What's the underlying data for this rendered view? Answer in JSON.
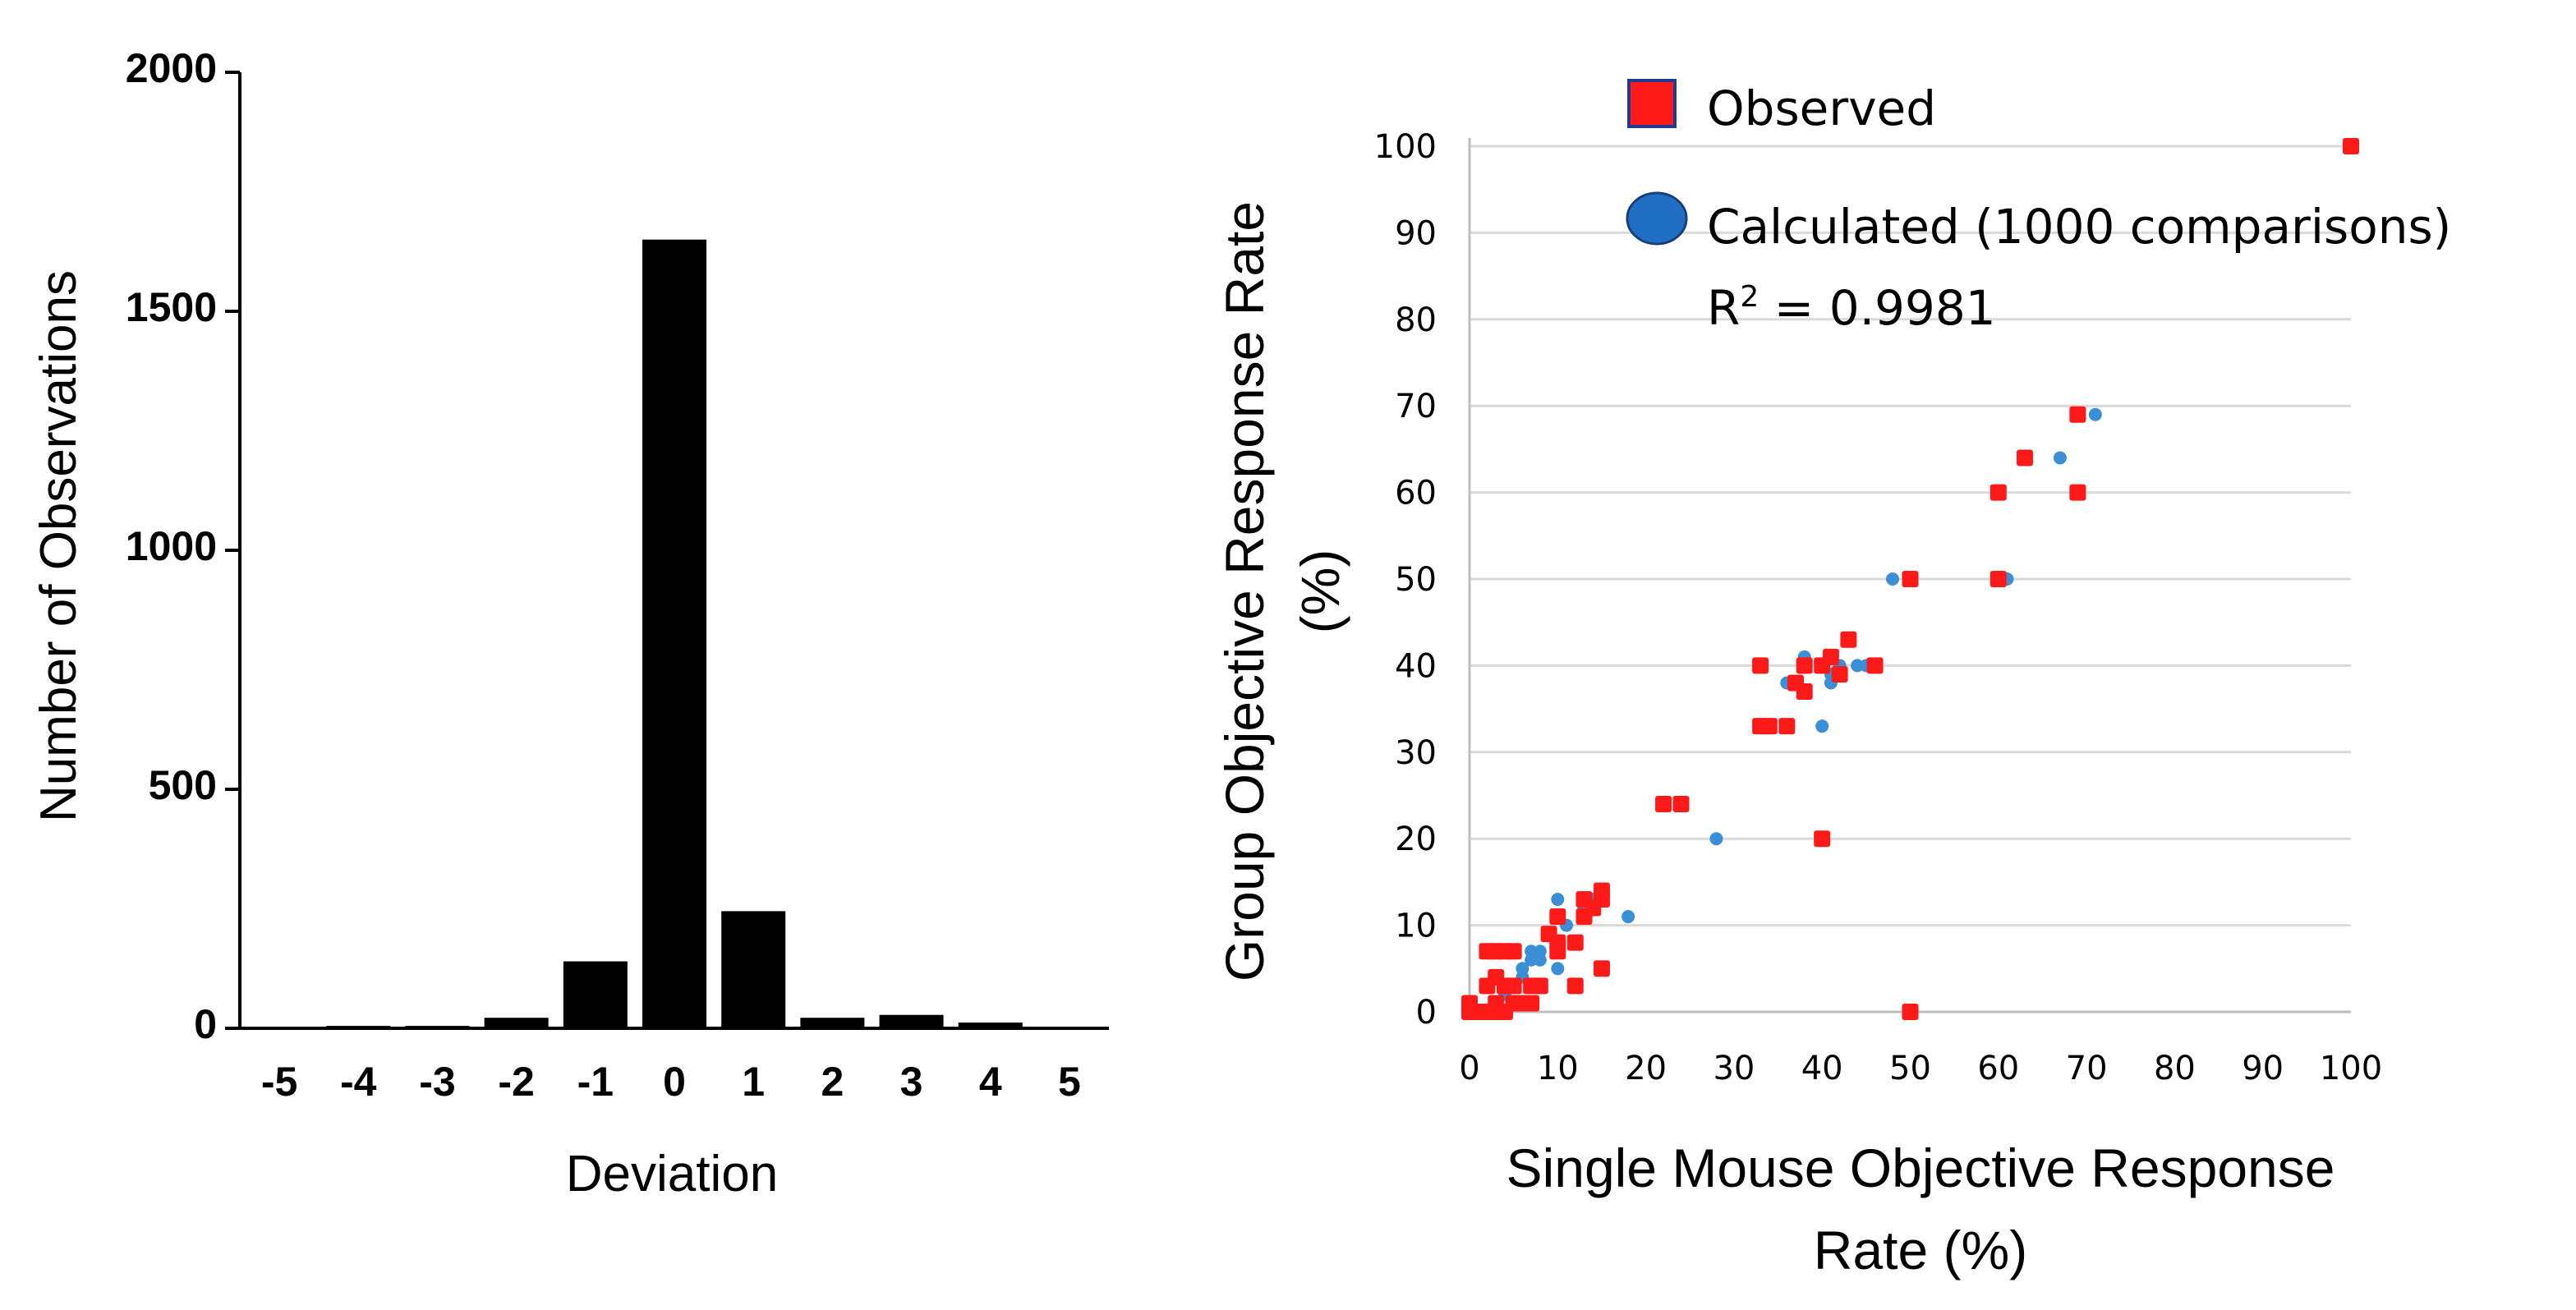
{
  "chart_data": [
    {
      "type": "bar",
      "title": "",
      "xlabel": "Deviation",
      "ylabel": "Number of Observations",
      "categories": [
        "-5",
        "-4",
        "-3",
        "-2",
        "-1",
        "0",
        "1",
        "2",
        "3",
        "4",
        "5"
      ],
      "values": [
        0,
        5,
        5,
        22,
        140,
        1650,
        245,
        22,
        28,
        12,
        0
      ],
      "ylim": [
        0,
        2000
      ],
      "yticks": [
        "0",
        "500",
        "1000",
        "1500",
        "2000"
      ],
      "colors": {
        "bar": "#000000"
      }
    },
    {
      "type": "scatter",
      "title": "",
      "xlabel_lines": [
        "Single Mouse Objective Response",
        "Rate (%)"
      ],
      "ylabel_lines": [
        "Group Objective Response Rate",
        "(%)"
      ],
      "xlim": [
        0,
        100
      ],
      "ylim": [
        0,
        100
      ],
      "xticks": [
        "0",
        "10",
        "20",
        "30",
        "40",
        "50",
        "60",
        "70",
        "80",
        "90",
        "100"
      ],
      "yticks": [
        "0",
        "10",
        "20",
        "30",
        "40",
        "50",
        "60",
        "70",
        "80",
        "90",
        "100"
      ],
      "legend": {
        "position": "top-right",
        "observed": "Observed",
        "calculated": "Calculated (1000 comparisons)",
        "r2_label": "R",
        "r2_sup": "2",
        "r2_value": " = 0.9981"
      },
      "colors": {
        "observed": "#ff1a1a",
        "calculated": "#3a8fd6",
        "legend_circle": "#1f6fc5",
        "legend_square_border": "#1f3a93",
        "grid": "#d9d9d9"
      },
      "series": [
        {
          "name": "Calculated",
          "points": [
            [
              0,
              0
            ],
            [
              1,
              0
            ],
            [
              2,
              0
            ],
            [
              0.5,
              0.3
            ],
            [
              3,
              1
            ],
            [
              4,
              2
            ],
            [
              5,
              3
            ],
            [
              6,
              4
            ],
            [
              6,
              5
            ],
            [
              7,
              6
            ],
            [
              7,
              7
            ],
            [
              8,
              7
            ],
            [
              8,
              6
            ],
            [
              10,
              5
            ],
            [
              10,
              13
            ],
            [
              11,
              10
            ],
            [
              12,
              8
            ],
            [
              13,
              12
            ],
            [
              14,
              13
            ],
            [
              18,
              11
            ],
            [
              24,
              24
            ],
            [
              28,
              20
            ],
            [
              36,
              38
            ],
            [
              38,
              41
            ],
            [
              40,
              40
            ],
            [
              41,
              39
            ],
            [
              41,
              38
            ],
            [
              40,
              33
            ],
            [
              42,
              40
            ],
            [
              44,
              40
            ],
            [
              45,
              40
            ],
            [
              48,
              50
            ],
            [
              60,
              60
            ],
            [
              61,
              50
            ],
            [
              67,
              64
            ],
            [
              71,
              69
            ],
            [
              100,
              100
            ]
          ]
        },
        {
          "name": "Observed",
          "points": [
            [
              0,
              0
            ],
            [
              1,
              0
            ],
            [
              2,
              0
            ],
            [
              3,
              0
            ],
            [
              0,
              1
            ],
            [
              2,
              7
            ],
            [
              3,
              7
            ],
            [
              4,
              7
            ],
            [
              5,
              7
            ],
            [
              3,
              1
            ],
            [
              4,
              0
            ],
            [
              5,
              1
            ],
            [
              4,
              3
            ],
            [
              5,
              3
            ],
            [
              3,
              4
            ],
            [
              2,
              3
            ],
            [
              6,
              1
            ],
            [
              7,
              1
            ],
            [
              7,
              3
            ],
            [
              8,
              3
            ],
            [
              9,
              9
            ],
            [
              10,
              11
            ],
            [
              10,
              8
            ],
            [
              10,
              7
            ],
            [
              12,
              8
            ],
            [
              12,
              3
            ],
            [
              13,
              13
            ],
            [
              13,
              11
            ],
            [
              14,
              12
            ],
            [
              15,
              13
            ],
            [
              15,
              14
            ],
            [
              15,
              5
            ],
            [
              22,
              24
            ],
            [
              24,
              24
            ],
            [
              33,
              40
            ],
            [
              33,
              33
            ],
            [
              34,
              33
            ],
            [
              36,
              33
            ],
            [
              37,
              38
            ],
            [
              38,
              40
            ],
            [
              38,
              37
            ],
            [
              40,
              40
            ],
            [
              41,
              41
            ],
            [
              42,
              39
            ],
            [
              43,
              43
            ],
            [
              46,
              40
            ],
            [
              40,
              20
            ],
            [
              50,
              50
            ],
            [
              50,
              0
            ],
            [
              60,
              60
            ],
            [
              60,
              50
            ],
            [
              63,
              64
            ],
            [
              69,
              69
            ],
            [
              69,
              60
            ],
            [
              100,
              100
            ]
          ]
        }
      ]
    }
  ]
}
